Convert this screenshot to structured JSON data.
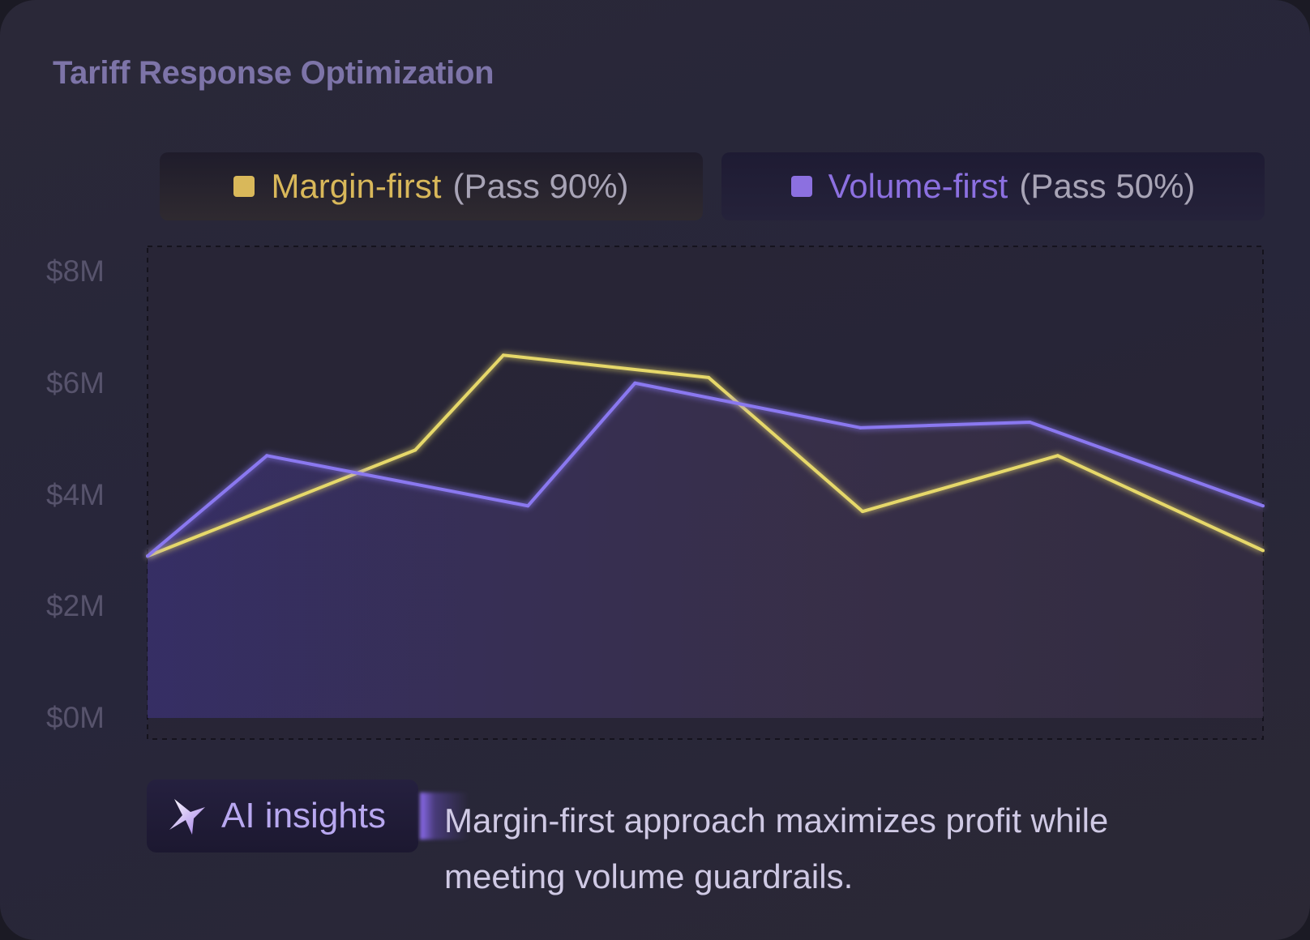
{
  "title": "Tariff Response Optimization",
  "legend": [
    {
      "name": "Margin-first",
      "note": "(Pass 90%)",
      "color": "#d9b85a"
    },
    {
      "name": "Volume-first",
      "note": "(Pass 50%)",
      "color": "#8c70e0"
    }
  ],
  "insight": {
    "badge_label": "AI insights",
    "icon": "sparkle-icon",
    "text": "Margin-first approach maximizes profit while meeting volume guardrails."
  },
  "chart_data": {
    "type": "line",
    "title": "Tariff Response Optimization",
    "xlabel": "",
    "ylabel": "",
    "ylim": [
      0,
      8
    ],
    "yticks": [
      "$0M",
      "$2M",
      "$4M",
      "$6M",
      "$8M"
    ],
    "ytick_values": [
      0,
      2,
      4,
      6,
      8
    ],
    "xlim": [
      0,
      100
    ],
    "grid": false,
    "legend_position": "top",
    "series": [
      {
        "name": "Margin-first",
        "color": "#e6d86a",
        "x": [
          0,
          24.0,
          31.9,
          50.3,
          64.1,
          81.6,
          100
        ],
        "values": [
          2.9,
          4.8,
          6.5,
          6.1,
          3.7,
          4.7,
          3.0
        ]
      },
      {
        "name": "Volume-first",
        "color": "#8a78f0",
        "area": true,
        "x": [
          0,
          10.7,
          34.1,
          43.7,
          63.9,
          79.1,
          100
        ],
        "values": [
          2.9,
          4.7,
          3.8,
          6.0,
          5.2,
          5.3,
          3.8
        ]
      }
    ]
  }
}
